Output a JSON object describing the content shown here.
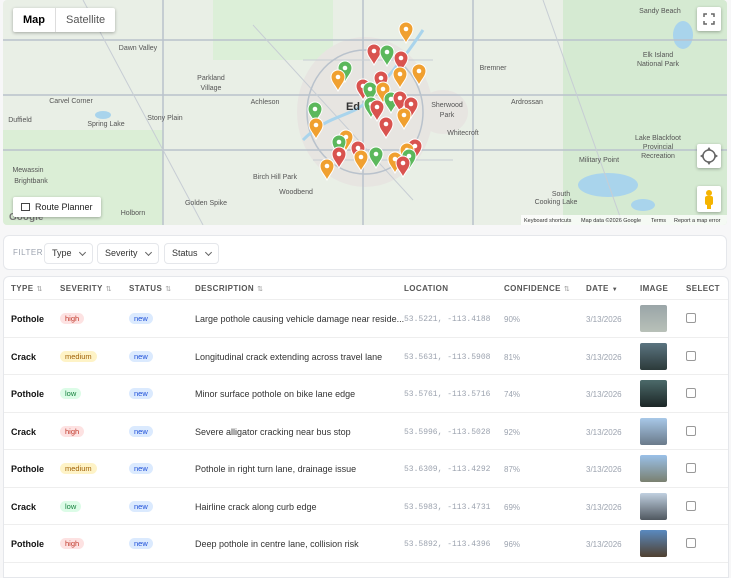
{
  "map": {
    "tabs": [
      "Map",
      "Satellite"
    ],
    "labels": [
      "Dawn Valley",
      "Parkland",
      "Village",
      "Carvel Corner",
      "Spring Lake",
      "Stony Plain",
      "Duffield",
      "Achleson",
      "Ed",
      "Sherwood",
      "Park",
      "Whitecroft",
      "Ardrossan",
      "Bremner",
      "Sandy Beach",
      "Elk Island",
      "National Park",
      "Military Point",
      "Lake Blackfoot",
      "Provincial",
      "Recreation",
      "Mewassin",
      "Brightbank",
      "Birch Hill Park",
      "Woodbend",
      "Golden Spike",
      "Holborn",
      "South",
      "Cooking Lake"
    ],
    "route_planner": "Route Planner",
    "logo": "Google",
    "footer": [
      "Keyboard shortcuts",
      "Map data ©2026 Google",
      "Terms",
      "Report a map error"
    ]
  },
  "filter": {
    "label": "FILTER",
    "dropdowns": [
      "Type",
      "Severity",
      "Status"
    ]
  },
  "table": {
    "headers": [
      "TYPE",
      "SEVERITY",
      "STATUS",
      "DESCRIPTION",
      "LOCATION",
      "CONFIDENCE",
      "DATE",
      "IMAGE",
      "SELECT"
    ],
    "rows": [
      [
        "Pothole",
        "high",
        "new",
        "Large pothole causing vehicle damage near reside...",
        "53.5221, -113.4188",
        "90%",
        "3/13/2026"
      ],
      [
        "Crack",
        "medium",
        "new",
        "Longitudinal crack extending across travel lane",
        "53.5631, -113.5908",
        "81%",
        "3/13/2026"
      ],
      [
        "Pothole",
        "low",
        "new",
        "Minor surface pothole on bike lane edge",
        "53.5761, -113.5716",
        "74%",
        "3/13/2026"
      ],
      [
        "Crack",
        "high",
        "new",
        "Severe alligator cracking near bus stop",
        "53.5996, -113.5028",
        "92%",
        "3/13/2026"
      ],
      [
        "Pothole",
        "medium",
        "new",
        "Pothole in right turn lane, drainage issue",
        "53.6309, -113.4292",
        "87%",
        "3/13/2026"
      ],
      [
        "Crack",
        "low",
        "new",
        "Hairline crack along curb edge",
        "53.5983, -113.4731",
        "69%",
        "3/13/2026"
      ],
      [
        "Pothole",
        "high",
        "new",
        "Deep pothole in centre lane, collision risk",
        "53.5892, -113.4396",
        "96%",
        "3/13/2026"
      ]
    ]
  }
}
